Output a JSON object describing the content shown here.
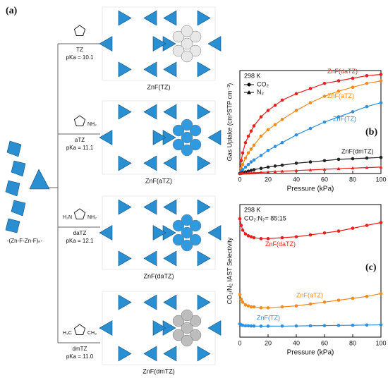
{
  "figure": {
    "panel_a": "(a)",
    "chain_label": "-(Zn-F-Zn-F)ₙ-",
    "ligands": [
      {
        "name": "TZ",
        "pka": "pKa = 10.1",
        "substituents": [],
        "framework": "ZnF(TZ)"
      },
      {
        "name": "aTZ",
        "pka": "pKa = 11.1",
        "substituents": [
          "NH₂"
        ],
        "framework": "ZnF(aTZ)"
      },
      {
        "name": "daTZ",
        "pka": "pKa = 12.1",
        "substituents": [
          "H₂N",
          "NH₂"
        ],
        "framework": "ZnF(daTZ)"
      },
      {
        "name": "dmTZ",
        "pka": "pKa = 11.0",
        "substituents": [
          "H₃C",
          "CH₃"
        ],
        "framework": "ZnF(dmTZ)"
      }
    ]
  },
  "chart_data": [
    {
      "type": "line",
      "panel": "(b)",
      "xlabel": "Pressure (kPa)",
      "ylabel": "Gas Uptake (cm³STP cm⁻³)",
      "annotations": [
        "298 K"
      ],
      "legend": [
        {
          "label": "CO₂",
          "marker": "circle"
        },
        {
          "label": "N₂",
          "marker": "triangle"
        }
      ],
      "xlim": [
        0,
        100
      ],
      "xticks": [
        0,
        20,
        40,
        60,
        80,
        100
      ],
      "ylim": [
        0,
        80
      ],
      "x": [
        0,
        1,
        2,
        4,
        6,
        8,
        10,
        15,
        20,
        25,
        30,
        40,
        50,
        60,
        70,
        80,
        90,
        100
      ],
      "series": [
        {
          "name": "ZnF(daTZ)",
          "color": "#e8201c",
          "marker": "circle",
          "values": [
            0,
            10,
            16,
            24,
            29,
            33,
            37,
            44,
            49,
            53,
            57,
            62,
            66,
            70,
            72,
            74,
            76,
            77
          ]
        },
        {
          "name": "ZnF(aTZ)",
          "color": "#f28a1c",
          "marker": "circle",
          "values": [
            0,
            4,
            7,
            12,
            16,
            19,
            22,
            29,
            34,
            38,
            42,
            49,
            55,
            60,
            64,
            67,
            70,
            72
          ]
        },
        {
          "name": "ZnF(TZ)",
          "color": "#2e8fe0",
          "marker": "circle",
          "values": [
            0,
            1.5,
            3,
            5,
            7,
            9,
            10.5,
            14,
            18,
            21,
            24,
            30,
            35,
            40,
            44,
            48,
            52,
            55
          ]
        },
        {
          "name": "ZnF(dmTZ)",
          "color": "#222222",
          "marker": "circle",
          "values": [
            0,
            0.3,
            0.6,
            1.2,
            1.8,
            2.4,
            3,
            4,
            5,
            5.8,
            6.5,
            8,
            9,
            10,
            11,
            11.5,
            12,
            12.5
          ]
        },
        {
          "color": "#e8201c",
          "marker": "triangle",
          "values": [
            0,
            0.1,
            0.2,
            0.3,
            0.4,
            0.5,
            0.6,
            0.9,
            1.2,
            1.5,
            1.8,
            2.3,
            2.8,
            3.3,
            3.8,
            4.2,
            4.6,
            5
          ]
        }
      ]
    },
    {
      "type": "line",
      "panel": "(c)",
      "xlabel": "Pressure (kPa)",
      "ylabel": "CO₂/N₂ IAST Selectivity",
      "annotations": [
        "298 K",
        "CO₂:N₂= 85:15"
      ],
      "xlim": [
        0,
        100
      ],
      "xticks": [
        0,
        20,
        40,
        60,
        80,
        100
      ],
      "ylim": [
        0,
        140
      ],
      "x": [
        0,
        1,
        2,
        4,
        6,
        8,
        10,
        15,
        20,
        30,
        40,
        50,
        60,
        70,
        80,
        90,
        100
      ],
      "series": [
        {
          "name": "ZnF(daTZ)",
          "color": "#e8201c",
          "marker": "circle",
          "values": [
            125,
            118,
            113,
            109,
            107,
            106,
            105,
            104,
            104,
            105,
            106,
            108,
            110,
            112,
            115,
            118,
            121
          ]
        },
        {
          "name": "ZnF(aTZ)",
          "color": "#f28a1c",
          "marker": "circle",
          "values": [
            45,
            40,
            37,
            34,
            33,
            32,
            32,
            31,
            31,
            32,
            33,
            35,
            37,
            39,
            41,
            43,
            46
          ]
        },
        {
          "name": "ZnF(TZ)",
          "color": "#2e8fe0",
          "marker": "circle",
          "values": [
            14,
            13,
            12.5,
            12,
            12,
            11.8,
            11.7,
            11.6,
            11.6,
            11.7,
            11.8,
            12,
            12.2,
            12.4,
            12.6,
            12.8,
            13
          ]
        }
      ]
    }
  ]
}
